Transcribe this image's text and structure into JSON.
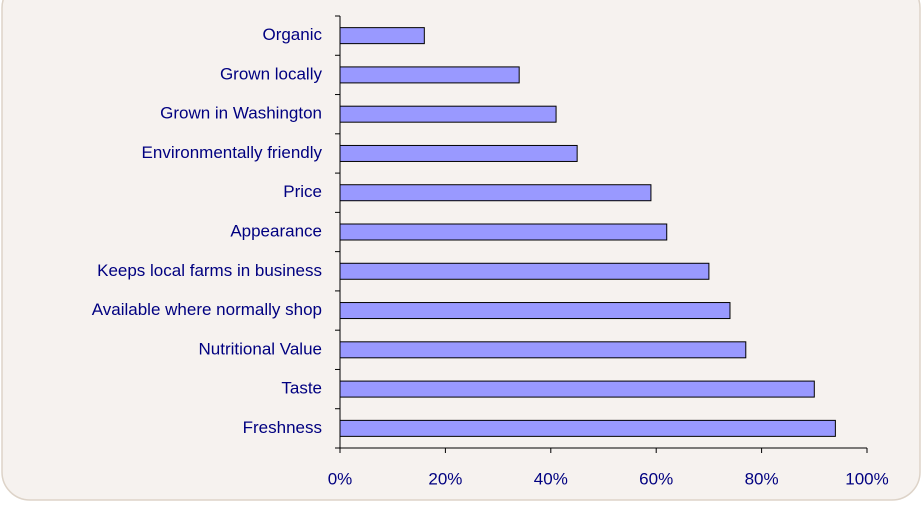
{
  "chart_data": {
    "type": "hbar",
    "categories": [
      "Organic",
      "Grown locally",
      "Grown in Washington",
      "Environmentally friendly",
      "Price",
      "Appearance",
      "Keeps local farms in business",
      "Available where normally shop",
      "Nutritional Value",
      "Taste",
      "Freshness"
    ],
    "values": [
      16,
      34,
      41,
      45,
      59,
      62,
      70,
      74,
      77,
      90,
      94
    ],
    "color": "#9999ff",
    "xlim": [
      0,
      100
    ],
    "xticks": [
      {
        "value": 0,
        "label": "0%"
      },
      {
        "value": 20,
        "label": "20%"
      },
      {
        "value": 40,
        "label": "40%"
      },
      {
        "value": 60,
        "label": "60%"
      },
      {
        "value": 80,
        "label": "80%"
      },
      {
        "value": 100,
        "label": "100%"
      }
    ],
    "grid": false
  }
}
